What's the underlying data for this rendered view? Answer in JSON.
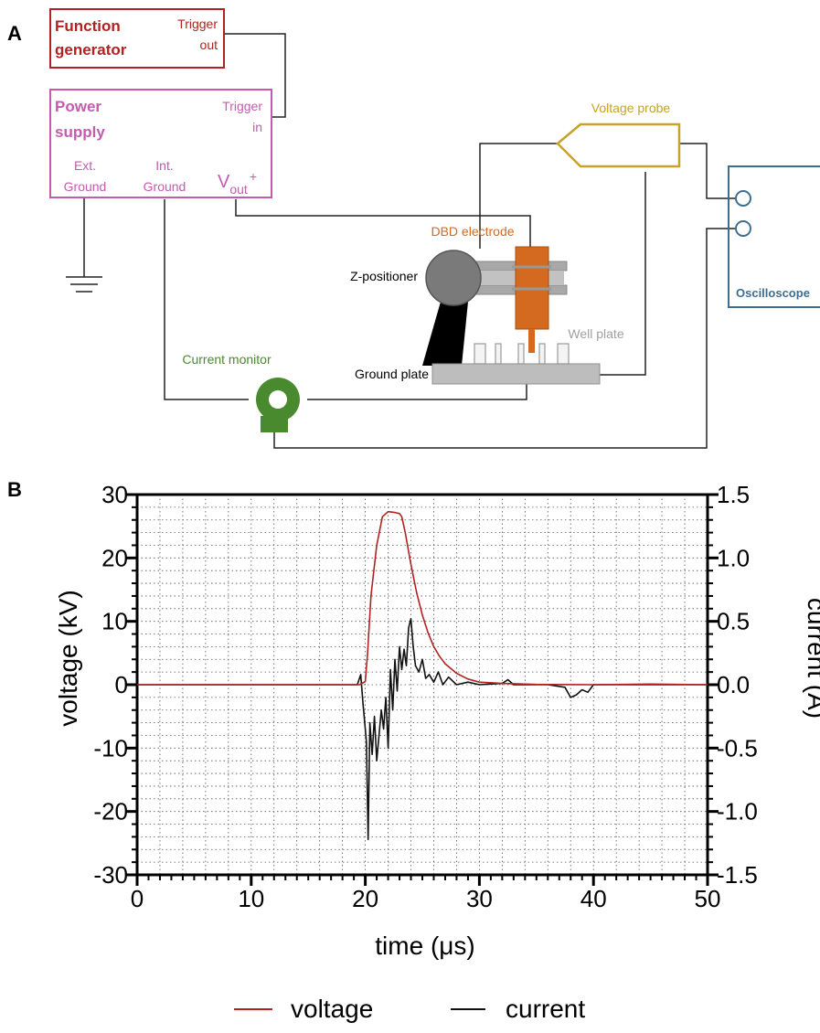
{
  "panels": {
    "a_label": "A",
    "b_label": "B"
  },
  "diagram": {
    "function_generator": {
      "title_line1": "Function",
      "title_line2": "generator",
      "port_line1": "Trigger",
      "port_line2": "out",
      "color": "#b22222"
    },
    "power_supply": {
      "title_line1": "Power",
      "title_line2": "supply",
      "trigger_line1": "Trigger",
      "trigger_line2": "in",
      "ext_ground_line1": "Ext.",
      "ext_ground_line2": "Ground",
      "int_ground_line1": "Int.",
      "int_ground_line2": "Ground",
      "vout_main": "V",
      "vout_sub": "out",
      "vout_sup": "+",
      "color": "#c35bb0"
    },
    "voltage_probe": {
      "label": "Voltage probe",
      "color": "#c8a02a"
    },
    "oscilloscope": {
      "label": "Oscilloscope",
      "color": "#3c6e8f"
    },
    "dbd_electrode": {
      "label": "DBD electrode",
      "color": "#d46a1f"
    },
    "z_positioner": {
      "label": "Z-positioner"
    },
    "well_plate": {
      "label": "Well plate"
    },
    "ground_plate": {
      "label": "Ground plate"
    },
    "current_monitor": {
      "label": "Current monitor",
      "color": "#4a8a2e"
    }
  },
  "chart_data": {
    "type": "line",
    "xlabel": "time (μs)",
    "ylabel": "voltage (kV)",
    "y2label": "current (A)",
    "xlim": [
      0,
      50
    ],
    "ylim": [
      -30,
      30
    ],
    "y2lim": [
      -1.5,
      1.5
    ],
    "x_ticks": [
      "0",
      "10",
      "20",
      "30",
      "40",
      "50"
    ],
    "y_ticks": [
      "30",
      "20",
      "10",
      "0",
      "-10",
      "-20",
      "-30"
    ],
    "y2_ticks": [
      "1.5",
      "1.0",
      "0.5",
      "0.0",
      "-0.5",
      "-1.0",
      "-1.5"
    ],
    "grid": true,
    "legend_position": "bottom",
    "series": [
      {
        "name": "voltage",
        "axis": "left",
        "color": "#b22222",
        "x": [
          0,
          10,
          19.5,
          20.0,
          20.2,
          20.5,
          21.0,
          21.5,
          22.0,
          22.5,
          23.0,
          23.2,
          23.5,
          24.0,
          24.5,
          25.0,
          25.5,
          26.0,
          26.5,
          27.0,
          28.0,
          29.0,
          30.0,
          32.0,
          35.0,
          40.0,
          45.0,
          50.0
        ],
        "y": [
          0,
          0,
          0,
          0.5,
          5,
          14,
          22,
          26.5,
          27.3,
          27.2,
          27.0,
          26.5,
          24,
          19,
          14.5,
          11,
          8.2,
          6,
          4.5,
          3.3,
          1.8,
          0.9,
          0.4,
          0.2,
          0.05,
          0,
          0.1,
          0
        ]
      },
      {
        "name": "current",
        "axis": "right",
        "color": "#111111",
        "x": [
          0,
          10,
          19.3,
          19.6,
          19.8,
          20.0,
          20.1,
          20.25,
          20.4,
          20.6,
          20.8,
          21.0,
          21.2,
          21.4,
          21.6,
          21.8,
          22.0,
          22.2,
          22.4,
          22.6,
          22.8,
          23.0,
          23.2,
          23.4,
          23.6,
          23.8,
          24.0,
          24.2,
          24.4,
          24.7,
          25.0,
          25.3,
          25.6,
          26.0,
          26.4,
          26.8,
          27.3,
          28.0,
          29.0,
          30.0,
          32.0,
          32.5,
          33.0,
          36.0,
          37.5,
          38.0,
          38.5,
          39.0,
          39.5,
          40.0,
          41.0,
          45.0,
          50.0
        ],
        "y": [
          0,
          0,
          0.0,
          0.08,
          -0.15,
          -0.35,
          -0.45,
          -1.22,
          -0.3,
          -0.55,
          -0.25,
          -0.6,
          -0.4,
          -0.2,
          -0.35,
          -0.1,
          -0.5,
          0.12,
          -0.2,
          0.2,
          -0.05,
          0.3,
          0.12,
          0.28,
          0.15,
          0.45,
          0.52,
          0.3,
          0.15,
          0.1,
          0.2,
          0.05,
          0.08,
          0.02,
          0.1,
          0.0,
          0.06,
          0.0,
          0.02,
          0.0,
          0.01,
          0.04,
          0.0,
          0.0,
          -0.02,
          -0.1,
          -0.08,
          -0.04,
          -0.06,
          0.0,
          0.0,
          0.0,
          0.0
        ]
      }
    ]
  }
}
